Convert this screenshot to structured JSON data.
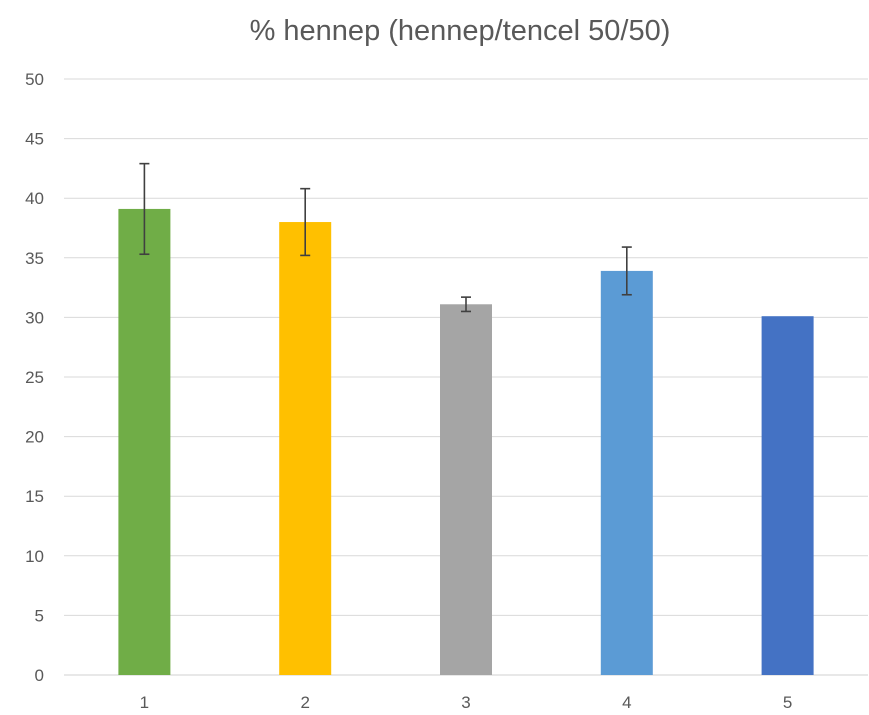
{
  "chart_data": {
    "type": "bar",
    "title": "% hennep (hennep/tencel 50/50)",
    "xlabel": "",
    "ylabel": "",
    "categories": [
      "1",
      "2",
      "3",
      "4",
      "5"
    ],
    "values": [
      39.1,
      38.0,
      31.1,
      33.9,
      30.1
    ],
    "error_bars": [
      {
        "low": 35.3,
        "high": 42.9
      },
      {
        "low": 35.2,
        "high": 40.8
      },
      {
        "low": 30.5,
        "high": 31.7
      },
      {
        "low": 31.9,
        "high": 35.9
      },
      null
    ],
    "colors": [
      "#70ad47",
      "#ffc000",
      "#a5a5a5",
      "#5b9bd5",
      "#4472c4"
    ],
    "ylim": [
      0,
      50
    ],
    "yticks": [
      "0",
      "5",
      "10",
      "15",
      "20",
      "25",
      "30",
      "35",
      "40",
      "45",
      "50"
    ],
    "grid": true,
    "legend": "none"
  }
}
